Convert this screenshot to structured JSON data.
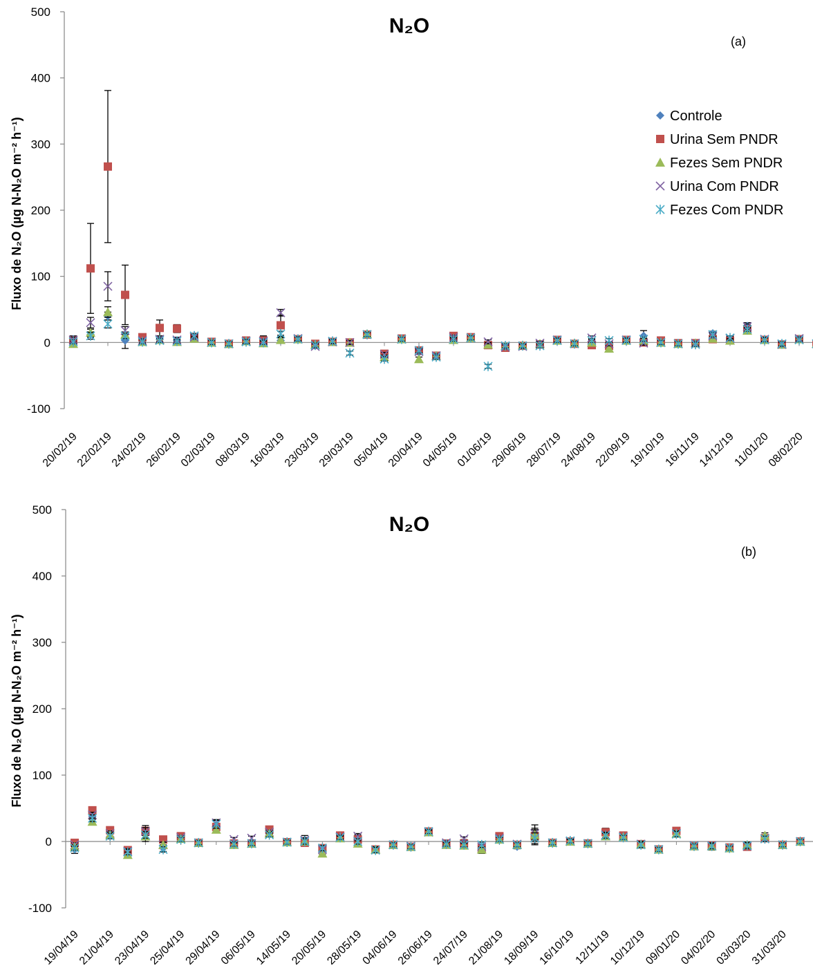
{
  "series_styles": [
    {
      "name": "Controle",
      "marker": "diamond",
      "color": "#4f81bd"
    },
    {
      "name": "Urina Sem PNDR",
      "marker": "square",
      "color": "#c0504d"
    },
    {
      "name": "Fezes Sem PNDR",
      "marker": "triangle",
      "color": "#9bbb59"
    },
    {
      "name": "Urina Com PNDR",
      "marker": "x",
      "color": "#8064a2"
    },
    {
      "name": "Fezes Com PNDR",
      "marker": "asterisk",
      "color": "#4bacc6"
    }
  ],
  "chart_data": [
    {
      "type": "scatter",
      "title": "N₂O",
      "panel_label": "(a)",
      "ylabel": "Fluxo de N₂O (µg N-N₂O m⁻² h⁻¹)",
      "ylim": [
        -100,
        500
      ],
      "yticks": [
        -100,
        0,
        100,
        200,
        300,
        400,
        500
      ],
      "legend": "right",
      "grid": false,
      "x": [
        "20/02/19",
        "21/02/19",
        "22/02/19",
        "23/02/19",
        "24/02/19",
        "25/02/19",
        "26/02/19",
        "27/02/19",
        "02/03/19",
        "05/03/19",
        "08/03/19",
        "12/03/19",
        "16/03/19",
        "20/03/19",
        "23/03/19",
        "26/03/19",
        "29/03/19",
        "02/04/19",
        "05/04/19",
        "12/04/19",
        "20/04/19",
        "27/04/19",
        "04/05/19",
        "18/05/19",
        "01/06/19",
        "15/06/19",
        "29/06/19",
        "13/07/19",
        "28/07/19",
        "10/08/19",
        "24/08/19",
        "07/09/19",
        "22/09/19",
        "05/10/19",
        "19/10/19",
        "01/11/19",
        "16/11/19",
        "30/11/19",
        "14/12/19",
        "28/12/19",
        "11/01/20",
        "25/01/20",
        "08/02/20",
        "22/02/20"
      ],
      "xtick_labels": [
        "20/02/19",
        "22/02/19",
        "24/02/19",
        "26/02/19",
        "02/03/19",
        "08/03/19",
        "16/03/19",
        "23/03/19",
        "29/03/19",
        "05/04/19",
        "20/04/19",
        "04/05/19",
        "01/06/19",
        "29/06/19",
        "28/07/19",
        "24/08/19",
        "22/09/19",
        "19/10/19",
        "16/11/19",
        "14/12/19",
        "11/01/20",
        "08/02/20"
      ],
      "series": [
        {
          "name": "Controle",
          "values": [
            5,
            12,
            40,
            3,
            2,
            5,
            3,
            10,
            1,
            -2,
            2,
            2,
            3,
            6,
            -3,
            2,
            0,
            12,
            -20,
            5,
            -15,
            -22,
            5,
            8,
            -2,
            -5,
            -5,
            -2,
            3,
            -1,
            2,
            -5,
            3,
            10,
            0,
            -2,
            -1,
            14,
            3,
            25,
            5,
            -2,
            5,
            -2
          ],
          "errors": [
            5,
            4,
            6,
            12,
            3,
            5,
            5,
            4,
            3,
            3,
            4,
            8,
            4,
            4,
            3,
            3,
            3,
            3,
            3,
            3,
            3,
            4,
            3,
            3,
            3,
            3,
            3,
            3,
            3,
            3,
            3,
            3,
            3,
            8,
            3,
            3,
            3,
            3,
            3,
            5,
            3,
            3,
            3,
            3
          ]
        },
        {
          "name": "Urina Sem PNDR",
          "values": [
            3,
            112,
            266,
            72,
            8,
            22,
            21,
            8,
            1,
            -2,
            3,
            3,
            26,
            5,
            -2,
            1,
            0,
            12,
            -17,
            6,
            -12,
            -20,
            10,
            8,
            -4,
            -8,
            -5,
            -3,
            4,
            -2,
            -4,
            -5,
            4,
            0,
            3,
            -1,
            -1,
            5,
            3,
            20,
            4,
            -3,
            5,
            -2
          ],
          "errors": [
            4,
            68,
            115,
            45,
            4,
            12,
            6,
            4,
            3,
            3,
            4,
            5,
            15,
            4,
            3,
            3,
            3,
            3,
            4,
            3,
            5,
            3,
            3,
            3,
            3,
            3,
            3,
            3,
            3,
            3,
            3,
            6,
            3,
            3,
            3,
            3,
            3,
            4,
            3,
            6,
            3,
            3,
            3,
            3
          ]
        },
        {
          "name": "Fezes Sem PNDR",
          "values": [
            -2,
            15,
            46,
            12,
            1,
            4,
            1,
            6,
            0,
            -2,
            2,
            -1,
            4,
            5,
            -3,
            1,
            0,
            13,
            -22,
            5,
            -25,
            -20,
            4,
            7,
            -3,
            -5,
            -4,
            -2,
            3,
            -1,
            0,
            -9,
            3,
            3,
            0,
            -2,
            -1,
            6,
            3,
            18,
            4,
            -3,
            5,
            -2
          ],
          "errors": [
            3,
            5,
            8,
            4,
            3,
            3,
            3,
            3,
            3,
            3,
            3,
            3,
            4,
            3,
            3,
            3,
            3,
            3,
            3,
            3,
            3,
            3,
            3,
            3,
            3,
            3,
            3,
            3,
            3,
            3,
            3,
            3,
            3,
            3,
            3,
            3,
            3,
            3,
            3,
            4,
            3,
            3,
            3,
            3
          ]
        },
        {
          "name": "Urina Com PNDR",
          "values": [
            4,
            30,
            85,
            18,
            3,
            5,
            4,
            8,
            0,
            -2,
            2,
            2,
            45,
            6,
            -6,
            1,
            0,
            12,
            -18,
            5,
            -14,
            -20,
            8,
            7,
            1,
            -7,
            -6,
            -1,
            4,
            -2,
            7,
            -2,
            4,
            -1,
            0,
            -2,
            -1,
            10,
            6,
            24,
            5,
            -3,
            6,
            -2
          ],
          "errors": [
            4,
            8,
            22,
            6,
            3,
            3,
            3,
            3,
            3,
            3,
            3,
            3,
            5,
            3,
            3,
            3,
            3,
            3,
            3,
            3,
            3,
            3,
            3,
            3,
            3,
            3,
            3,
            3,
            3,
            3,
            3,
            3,
            3,
            3,
            3,
            3,
            3,
            3,
            3,
            4,
            3,
            3,
            3,
            3
          ]
        },
        {
          "name": "Fezes Com PNDR",
          "values": [
            1,
            10,
            28,
            10,
            1,
            3,
            2,
            10,
            0,
            -2,
            1,
            0,
            13,
            5,
            -4,
            2,
            -16,
            12,
            -25,
            5,
            -12,
            -22,
            5,
            7,
            -36,
            -5,
            -5,
            -5,
            3,
            -2,
            3,
            3,
            3,
            5,
            0,
            -2,
            -3,
            12,
            7,
            20,
            4,
            -2,
            4,
            -2
          ],
          "errors": [
            3,
            5,
            6,
            4,
            3,
            3,
            3,
            3,
            3,
            3,
            3,
            3,
            4,
            3,
            3,
            3,
            3,
            3,
            3,
            3,
            3,
            3,
            3,
            3,
            3,
            3,
            3,
            3,
            3,
            3,
            3,
            3,
            3,
            3,
            3,
            3,
            3,
            3,
            3,
            3,
            3,
            3,
            3,
            3
          ]
        }
      ]
    },
    {
      "type": "scatter",
      "title": "N₂O",
      "panel_label": "(b)",
      "ylabel": "Fluxo de N₂O (µg N-N₂O m⁻² h⁻¹)",
      "ylim": [
        -100,
        500
      ],
      "yticks": [
        -100,
        0,
        100,
        200,
        300,
        400,
        500
      ],
      "legend": "none",
      "grid": false,
      "x": [
        "19/04/19",
        "20/04/19",
        "21/04/19",
        "22/04/19",
        "23/04/19",
        "24/04/19",
        "25/04/19",
        "27/04/19",
        "29/04/19",
        "02/05/19",
        "06/05/19",
        "10/05/19",
        "14/05/19",
        "17/05/19",
        "20/05/19",
        "24/05/19",
        "28/05/19",
        "31/05/19",
        "04/06/19",
        "14/06/19",
        "26/06/19",
        "10/07/19",
        "24/07/19",
        "07/08/19",
        "21/08/19",
        "04/09/19",
        "18/09/19",
        "02/10/19",
        "16/10/19",
        "29/10/19",
        "12/11/19",
        "26/11/19",
        "10/12/19",
        "24/12/19",
        "09/01/20",
        "23/01/20",
        "04/02/20",
        "18/02/20",
        "03/03/20",
        "17/03/20",
        "31/03/20",
        "14/04/20",
        "28/04/20"
      ],
      "xtick_labels": [
        "19/04/19",
        "21/04/19",
        "23/04/19",
        "25/04/19",
        "29/04/19",
        "06/05/19",
        "14/05/19",
        "20/05/19",
        "28/05/19",
        "04/06/19",
        "26/06/19",
        "24/07/19",
        "21/08/19",
        "18/09/19",
        "16/10/19",
        "12/11/19",
        "10/12/19",
        "09/01/20",
        "04/02/20",
        "03/03/20",
        "31/03/20"
      ],
      "series": [
        {
          "name": "Controle",
          "values": [
            -12,
            38,
            12,
            -14,
            12,
            -10,
            5,
            -2,
            25,
            -3,
            -2,
            12,
            -1,
            2,
            -14,
            8,
            2,
            -12,
            -5,
            -8,
            15,
            -3,
            -3,
            -12,
            5,
            -8,
            10,
            -2,
            0,
            -3,
            12,
            8,
            -5,
            -12,
            13,
            -8,
            -8,
            -10,
            -8,
            5,
            -5,
            0,
            1
          ],
          "errors": [
            6,
            5,
            4,
            4,
            12,
            5,
            4,
            3,
            7,
            4,
            4,
            4,
            3,
            7,
            5,
            3,
            8,
            4,
            3,
            3,
            3,
            4,
            6,
            6,
            3,
            3,
            15,
            3,
            3,
            3,
            8,
            3,
            5,
            3,
            5,
            3,
            5,
            4,
            5,
            5,
            3,
            4,
            5
          ]
        },
        {
          "name": "Urina Sem PNDR",
          "values": [
            -2,
            47,
            17,
            -13,
            16,
            3,
            8,
            -2,
            22,
            -3,
            -3,
            18,
            -1,
            -2,
            -10,
            9,
            3,
            -12,
            -5,
            -8,
            15,
            -3,
            -3,
            -10,
            8,
            -5,
            8,
            -2,
            0,
            -3,
            14,
            9,
            -4,
            -12,
            16,
            -7,
            -6,
            -9,
            -8,
            5,
            -5,
            0,
            1
          ],
          "errors": [
            3,
            5,
            4,
            4,
            5,
            4,
            3,
            3,
            5,
            3,
            3,
            4,
            3,
            4,
            4,
            3,
            4,
            4,
            3,
            3,
            3,
            3,
            3,
            4,
            3,
            3,
            8,
            3,
            3,
            3,
            4,
            3,
            4,
            3,
            4,
            3,
            4,
            3,
            4,
            4,
            3,
            3,
            4
          ]
        },
        {
          "name": "Urina Com PNDR",
          "values": [
            -5,
            40,
            12,
            -15,
            15,
            -5,
            6,
            -2,
            28,
            3,
            5,
            14,
            -1,
            2,
            -12,
            7,
            8,
            -13,
            -5,
            -7,
            14,
            -2,
            4,
            -8,
            5,
            -4,
            12,
            -2,
            0,
            -3,
            10,
            7,
            -4,
            -12,
            12,
            -6,
            -6,
            -10,
            -7,
            4,
            -5,
            0,
            1
          ],
          "errors": [
            3,
            4,
            4,
            4,
            6,
            4,
            3,
            3,
            5,
            3,
            3,
            3,
            3,
            4,
            4,
            3,
            4,
            4,
            3,
            3,
            3,
            3,
            3,
            4,
            3,
            3,
            8,
            3,
            3,
            3,
            4,
            3,
            4,
            3,
            4,
            3,
            4,
            3,
            4,
            4,
            3,
            3,
            4
          ]
        },
        {
          "name": "Fezes Sem PNDR",
          "values": [
            -8,
            30,
            10,
            -20,
            8,
            -5,
            4,
            -2,
            18,
            -5,
            -3,
            12,
            -1,
            0,
            -18,
            5,
            -3,
            -12,
            -5,
            -8,
            14,
            -5,
            -6,
            -12,
            3,
            -5,
            10,
            -2,
            0,
            -3,
            8,
            7,
            -4,
            -12,
            12,
            -7,
            -7,
            -10,
            -5,
            9,
            -5,
            0,
            1
          ],
          "errors": [
            3,
            5,
            4,
            4,
            5,
            4,
            3,
            3,
            5,
            3,
            3,
            3,
            3,
            4,
            4,
            3,
            4,
            4,
            3,
            3,
            3,
            3,
            3,
            4,
            3,
            3,
            8,
            3,
            3,
            3,
            4,
            3,
            4,
            3,
            4,
            3,
            4,
            3,
            4,
            4,
            3,
            3,
            4
          ]
        },
        {
          "name": "Fezes Com PNDR",
          "values": [
            -10,
            35,
            8,
            -16,
            10,
            -12,
            3,
            -2,
            26,
            -4,
            -3,
            10,
            -1,
            0,
            -10,
            6,
            0,
            -13,
            -5,
            -8,
            15,
            -4,
            -5,
            -5,
            3,
            -5,
            5,
            -2,
            1,
            -3,
            9,
            6,
            -5,
            -12,
            11,
            -7,
            -7,
            -10,
            -6,
            4,
            -5,
            0,
            0
          ],
          "errors": [
            3,
            5,
            4,
            4,
            5,
            4,
            3,
            3,
            6,
            3,
            3,
            3,
            3,
            4,
            4,
            3,
            4,
            4,
            3,
            3,
            3,
            3,
            3,
            4,
            3,
            3,
            8,
            3,
            3,
            3,
            4,
            3,
            4,
            3,
            4,
            3,
            4,
            3,
            4,
            4,
            3,
            3,
            4
          ]
        }
      ]
    }
  ]
}
